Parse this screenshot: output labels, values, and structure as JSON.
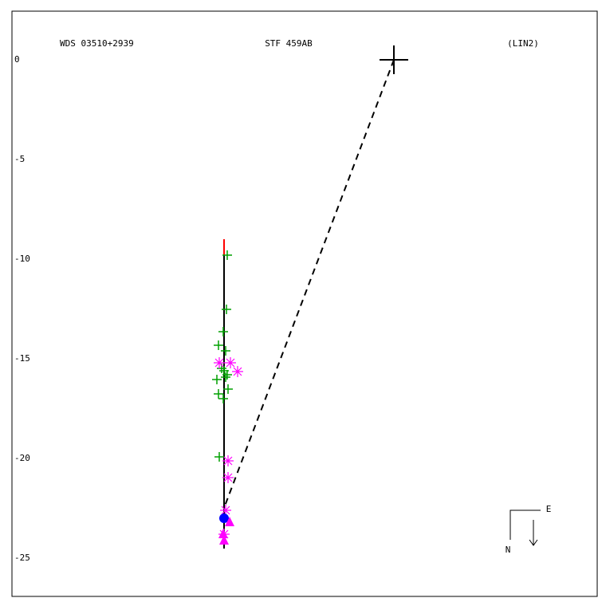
{
  "chart_data": {
    "type": "scatter",
    "title_left": "WDS 03510+2939",
    "title": "STF 459AB",
    "title_right": "(LIN2)",
    "compass": {
      "east": "E",
      "north": "N"
    },
    "xlim": [
      -19.16,
      10.2
    ],
    "ylim": [
      -26.92,
      2.44
    ],
    "yticks": [
      0,
      -5,
      -10,
      -15,
      -20,
      -25
    ],
    "series": [
      {
        "marker": "line",
        "style": "solid",
        "color": "#ff0000",
        "x": [
          -8.52,
          -8.52
        ],
        "values": [
          -9.0,
          -9.8
        ]
      },
      {
        "marker": "line",
        "style": "solid",
        "color": "#000000",
        "x": [
          -8.52,
          -8.52
        ],
        "values": [
          -9.8,
          -24.52
        ]
      },
      {
        "marker": "line",
        "style": "dashed",
        "color": "#000000",
        "x": [
          0,
          -8.52
        ],
        "values": [
          0,
          -22.48
        ]
      },
      {
        "marker": "plus",
        "color": "#00a000",
        "x": [
          -8.36,
          -8.4,
          -8.56,
          -8.8,
          -8.44,
          -8.64,
          -8.52,
          -8.36,
          -8.88,
          -8.44,
          -8.32,
          -8.8,
          -8.56,
          -8.76
        ],
        "values": [
          -9.8,
          -12.52,
          -13.64,
          -14.32,
          -14.6,
          -15.48,
          -15.6,
          -15.8,
          -16.04,
          -15.92,
          -16.52,
          -16.76,
          -17,
          -19.92
        ]
      },
      {
        "marker": "asterisk",
        "color": "#ff00ff",
        "x": [
          -8.76,
          -8.2,
          -7.84,
          -8.32,
          -8.32,
          -8.44,
          -8.52
        ],
        "values": [
          -15.2,
          -15.2,
          -15.64,
          -20.12,
          -20.96,
          -22.6,
          -23.8
        ]
      },
      {
        "marker": "circle",
        "color": "#0000ff",
        "x": [
          -8.52
        ],
        "values": [
          -23.0
        ]
      },
      {
        "marker": "triangle",
        "color": "#ff00ff",
        "x": [
          -8.24,
          -8.56,
          -8.52
        ],
        "values": [
          -23.2,
          -23.8,
          -24.12
        ]
      },
      {
        "marker": "bigplus",
        "color": "#000000",
        "x": [
          0
        ],
        "values": [
          0
        ]
      }
    ]
  }
}
